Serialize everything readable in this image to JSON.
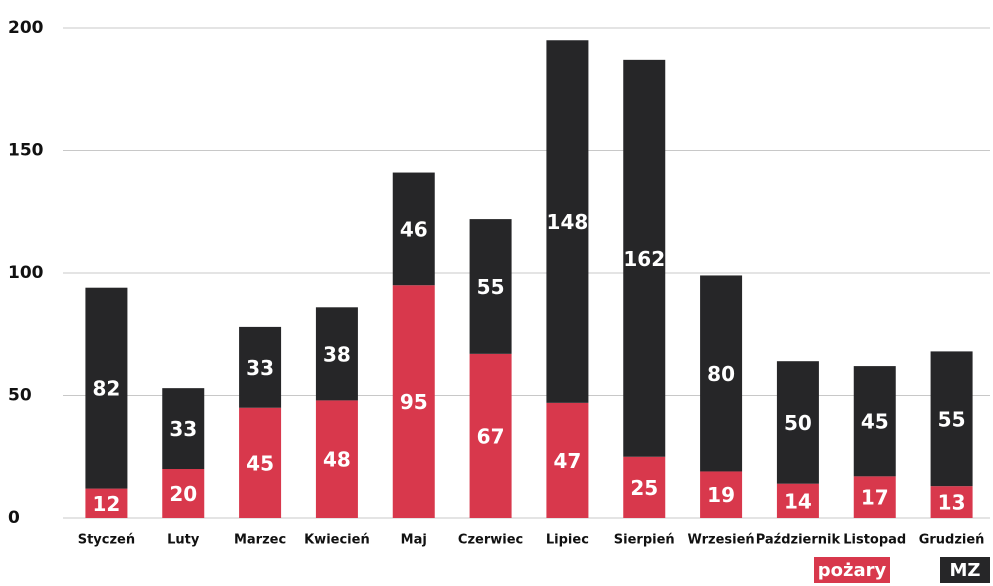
{
  "chart_data": {
    "type": "stacked_bar",
    "categories": [
      "Styczeń",
      "Luty",
      "Marzec",
      "Kwiecień",
      "Maj",
      "Czerwiec",
      "Lipiec",
      "Sierpień",
      "Wrzesień",
      "Październik",
      "Listopad",
      "Grudzień"
    ],
    "series": [
      {
        "name": "pożary",
        "color": "#d8384c",
        "values": [
          12,
          20,
          45,
          48,
          95,
          67,
          47,
          25,
          19,
          14,
          17,
          13
        ]
      },
      {
        "name": "MZ",
        "color": "#262628",
        "values": [
          82,
          33,
          33,
          38,
          46,
          55,
          148,
          162,
          80,
          50,
          45,
          55
        ]
      }
    ],
    "ylim": [
      0,
      200
    ],
    "yticks": [
      0,
      50,
      100,
      150,
      200
    ],
    "grid": true,
    "legend": "bottom-right"
  }
}
